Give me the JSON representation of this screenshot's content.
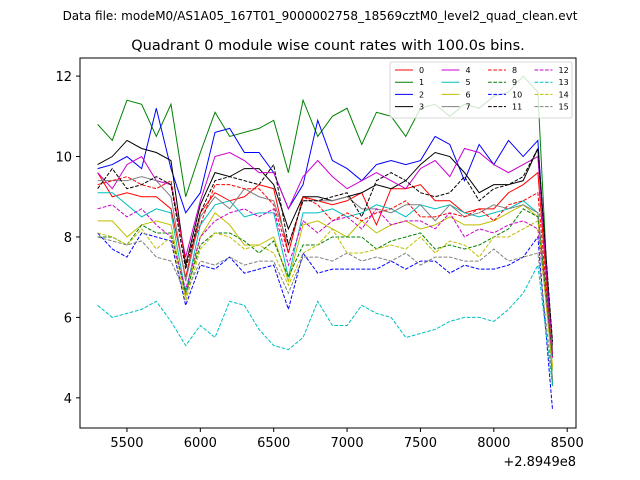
{
  "suptitle": "Data file: modeM0/AS1A05_167T01_9000002758_18569cztM0_level2_quad_clean.evt",
  "chart_data": {
    "type": "line",
    "title": "Quadrant 0 module wise count rates with 100.0s bins.",
    "xlabel": "",
    "ylabel": "",
    "x_offset_label": "+2.8949e8",
    "xlim": [
      5180,
      8560
    ],
    "ylim": [
      3.25,
      12.45
    ],
    "xticks": [
      5500,
      6000,
      6500,
      7000,
      7500,
      8000,
      8500
    ],
    "yticks": [
      4,
      6,
      8,
      10,
      12
    ],
    "legend_position": "top-right",
    "x": [
      5300,
      5400,
      5500,
      5600,
      5700,
      5800,
      5900,
      6000,
      6100,
      6200,
      6300,
      6400,
      6500,
      6600,
      6700,
      6800,
      6900,
      7000,
      7100,
      7200,
      7300,
      7400,
      7500,
      7600,
      7700,
      7800,
      7900,
      8000,
      8100,
      8200,
      8300,
      8400
    ],
    "series": [
      {
        "name": "0",
        "color": "#ff0000",
        "dash": "solid",
        "values": [
          9.6,
          9.0,
          9.1,
          9.0,
          9.0,
          8.7,
          7.0,
          8.6,
          9.1,
          8.9,
          9.0,
          9.3,
          9.2,
          7.6,
          9.0,
          8.9,
          8.8,
          8.9,
          9.1,
          8.3,
          9.2,
          9.2,
          9.3,
          8.9,
          8.9,
          8.6,
          8.7,
          8.7,
          9.1,
          9.3,
          9.6,
          5.1
        ]
      },
      {
        "name": "1",
        "color": "#008000",
        "dash": "solid",
        "values": [
          10.8,
          10.4,
          11.4,
          11.3,
          10.5,
          11.3,
          9.0,
          10.1,
          11.1,
          10.5,
          10.6,
          10.7,
          10.9,
          9.6,
          11.4,
          10.5,
          11.0,
          11.2,
          10.3,
          11.1,
          11.0,
          10.5,
          11.2,
          11.3,
          11.0,
          11.3,
          11.2,
          11.5,
          11.6,
          12.0,
          11.6,
          4.3
        ]
      },
      {
        "name": "2",
        "color": "#0000ff",
        "dash": "solid",
        "values": [
          9.7,
          9.8,
          10.0,
          9.7,
          11.2,
          9.7,
          8.6,
          9.1,
          10.6,
          10.7,
          10.1,
          10.1,
          9.6,
          8.7,
          9.3,
          10.9,
          9.9,
          9.7,
          9.4,
          9.8,
          9.9,
          9.8,
          9.9,
          10.5,
          10.3,
          9.4,
          10.3,
          9.8,
          10.4,
          10.0,
          10.4,
          5.0
        ]
      },
      {
        "name": "3",
        "color": "#000000",
        "dash": "solid",
        "values": [
          9.8,
          10.0,
          10.4,
          10.2,
          10.1,
          9.9,
          7.3,
          8.8,
          9.6,
          9.5,
          9.7,
          9.7,
          9.3,
          8.2,
          9.0,
          9.0,
          8.9,
          9.0,
          9.1,
          9.3,
          9.2,
          9.4,
          9.8,
          10.1,
          10.0,
          9.6,
          9.1,
          9.3,
          9.3,
          9.4,
          10.2,
          5.3
        ]
      },
      {
        "name": "4",
        "color": "#cc00cc",
        "dash": "solid",
        "values": [
          9.6,
          9.2,
          9.8,
          10.0,
          9.4,
          9.3,
          7.5,
          8.9,
          10.0,
          10.1,
          9.9,
          9.6,
          9.6,
          8.7,
          9.5,
          9.9,
          9.5,
          9.2,
          9.4,
          9.6,
          9.4,
          9.2,
          9.7,
          9.9,
          9.5,
          10.2,
          10.1,
          9.8,
          9.6,
          9.8,
          10.0,
          5.2
        ]
      },
      {
        "name": "5",
        "color": "#00bfbf",
        "dash": "solid",
        "values": [
          9.1,
          9.1,
          8.8,
          8.5,
          8.7,
          8.6,
          6.6,
          8.3,
          8.8,
          8.9,
          8.5,
          8.6,
          8.6,
          7.0,
          8.6,
          8.6,
          8.7,
          8.5,
          8.6,
          8.8,
          8.7,
          8.5,
          8.8,
          8.7,
          8.8,
          8.6,
          8.5,
          8.6,
          8.7,
          8.9,
          8.6,
          4.7
        ]
      },
      {
        "name": "6",
        "color": "#bfbf00",
        "dash": "solid",
        "values": [
          8.4,
          8.4,
          8.0,
          8.3,
          8.4,
          8.3,
          6.5,
          8.0,
          8.6,
          8.3,
          7.8,
          7.8,
          8.0,
          6.9,
          8.3,
          8.4,
          8.2,
          8.0,
          8.4,
          8.1,
          8.3,
          8.4,
          8.2,
          8.3,
          8.5,
          8.3,
          8.3,
          8.4,
          8.6,
          8.8,
          8.5,
          4.8
        ]
      },
      {
        "name": "7",
        "color": "#808080",
        "dash": "solid",
        "values": [
          9.4,
          9.4,
          9.4,
          9.5,
          9.4,
          9.0,
          6.9,
          8.5,
          9.0,
          8.7,
          9.2,
          9.0,
          8.9,
          7.8,
          8.9,
          8.9,
          8.9,
          9.0,
          8.7,
          8.7,
          8.6,
          8.8,
          8.8,
          8.4,
          8.8,
          8.5,
          8.6,
          8.8,
          8.7,
          8.8,
          8.6,
          5.2
        ]
      },
      {
        "name": "8",
        "color": "#ff0000",
        "dash": "dashed",
        "values": [
          9.3,
          9.4,
          9.5,
          9.3,
          9.2,
          9.4,
          7.4,
          8.3,
          9.3,
          9.3,
          9.2,
          9.2,
          8.8,
          7.6,
          9.0,
          8.8,
          8.4,
          8.6,
          8.4,
          8.6,
          8.7,
          8.9,
          8.5,
          8.5,
          8.6,
          8.5,
          8.7,
          8.4,
          8.8,
          8.9,
          9.1,
          5.0
        ]
      },
      {
        "name": "9",
        "color": "#008000",
        "dash": "dashed",
        "values": [
          8.0,
          8.0,
          7.8,
          8.3,
          8.1,
          8.1,
          6.6,
          7.8,
          8.1,
          8.1,
          7.9,
          7.6,
          7.9,
          7.0,
          7.8,
          7.8,
          8.0,
          8.0,
          8.0,
          7.7,
          7.9,
          8.0,
          8.1,
          7.7,
          7.8,
          7.7,
          7.8,
          8.0,
          8.2,
          8.7,
          8.5,
          5.0
        ]
      },
      {
        "name": "10",
        "color": "#0000ff",
        "dash": "dashed",
        "values": [
          8.1,
          7.7,
          7.5,
          8.1,
          8.0,
          7.9,
          6.3,
          7.3,
          7.2,
          7.5,
          7.1,
          7.2,
          7.3,
          6.2,
          7.6,
          7.1,
          7.2,
          7.2,
          7.2,
          7.2,
          7.4,
          7.2,
          7.4,
          7.4,
          7.1,
          7.3,
          7.2,
          7.2,
          7.3,
          7.5,
          8.0,
          3.7
        ]
      },
      {
        "name": "11",
        "color": "#000000",
        "dash": "dashed",
        "values": [
          9.2,
          9.7,
          9.2,
          9.3,
          9.5,
          9.3,
          7.2,
          8.6,
          9.4,
          9.5,
          9.4,
          9.3,
          9.8,
          7.8,
          8.9,
          8.9,
          9.0,
          9.1,
          8.5,
          9.4,
          9.6,
          9.4,
          9.1,
          9.0,
          9.1,
          9.5,
          8.9,
          9.2,
          9.3,
          9.5,
          10.2,
          5.4
        ]
      },
      {
        "name": "12",
        "color": "#cc00cc",
        "dash": "dashed",
        "values": [
          8.7,
          8.8,
          8.5,
          8.7,
          8.3,
          8.0,
          6.7,
          8.0,
          8.4,
          8.6,
          8.7,
          8.5,
          8.7,
          7.3,
          8.4,
          8.1,
          8.4,
          8.5,
          8.2,
          8.7,
          8.3,
          8.4,
          8.4,
          8.2,
          8.6,
          8.0,
          8.2,
          8.1,
          8.3,
          8.4,
          8.2,
          5.0
        ]
      },
      {
        "name": "13",
        "color": "#00bfbf",
        "dash": "dashed",
        "values": [
          6.3,
          6.0,
          6.1,
          6.2,
          6.4,
          5.9,
          5.3,
          5.8,
          5.5,
          6.4,
          6.3,
          5.7,
          5.3,
          5.2,
          5.5,
          6.4,
          5.8,
          5.8,
          6.3,
          6.1,
          6.0,
          5.5,
          5.6,
          5.7,
          5.9,
          6.0,
          6.0,
          5.9,
          6.2,
          6.6,
          7.3,
          4.3
        ]
      },
      {
        "name": "14",
        "color": "#bfbf00",
        "dash": "dashed",
        "values": [
          8.1,
          8.0,
          7.8,
          8.2,
          7.7,
          8.0,
          6.4,
          7.7,
          8.1,
          8.0,
          7.7,
          7.8,
          7.6,
          6.8,
          7.6,
          7.8,
          8.2,
          7.6,
          7.6,
          7.7,
          7.8,
          7.7,
          8.0,
          7.6,
          7.9,
          7.8,
          7.5,
          8.0,
          8.0,
          8.2,
          8.4,
          4.7
        ]
      },
      {
        "name": "15",
        "color": "#808080",
        "dash": "dashed",
        "values": [
          8.0,
          7.9,
          7.8,
          7.9,
          7.5,
          7.4,
          6.6,
          7.4,
          7.3,
          7.5,
          7.3,
          7.4,
          7.4,
          6.6,
          7.5,
          7.5,
          7.4,
          7.6,
          7.4,
          7.5,
          7.4,
          7.6,
          7.3,
          7.5,
          7.5,
          7.4,
          7.4,
          7.7,
          7.4,
          7.5,
          7.6,
          4.5
        ]
      }
    ]
  }
}
